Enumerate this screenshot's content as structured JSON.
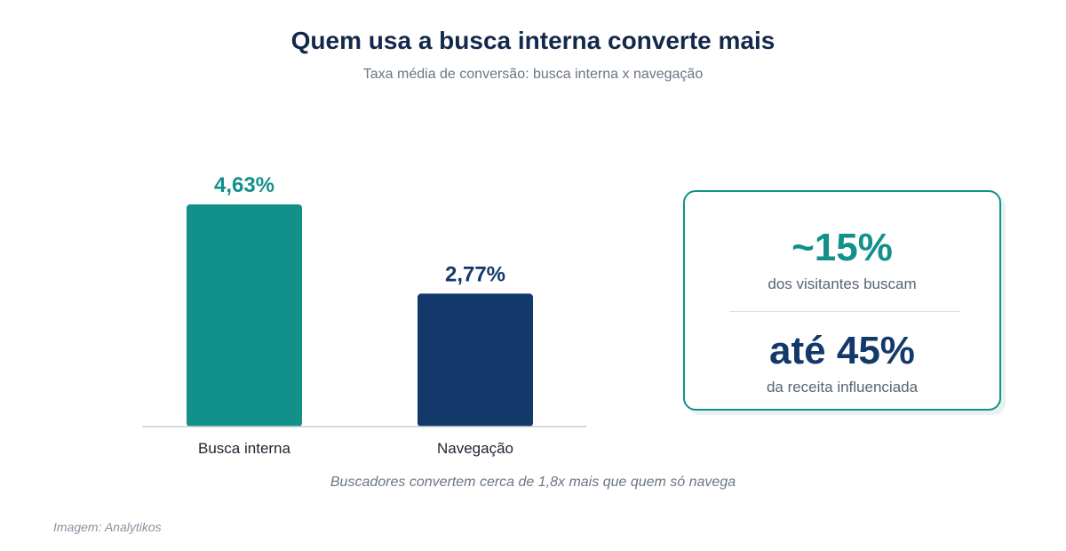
{
  "header": {
    "title": "Quem usa a busca interna converte mais",
    "subtitle": "Taxa média de conversão: busca interna x navegação"
  },
  "chart_data": {
    "type": "bar",
    "categories": [
      "Busca interna",
      "Navegação"
    ],
    "values": [
      4.63,
      2.77
    ],
    "data_labels": [
      "4,63%",
      "2,77%"
    ],
    "colors": [
      "#12908a",
      "#13396a"
    ],
    "ylim": [
      0,
      5
    ],
    "grid": false,
    "title": "Quem usa a busca interna converte mais",
    "subtitle": "Taxa média de conversão: busca interna x navegação",
    "xlabel": "",
    "ylabel": ""
  },
  "callout": {
    "stat1": {
      "value": "~15%",
      "label": "dos visitantes buscam"
    },
    "stat2": {
      "value": "até 45%",
      "label": "da receita influenciada"
    }
  },
  "caption": "Buscadores convertem cerca de 1,8x mais que quem só navega",
  "source": "Imagem: Analytikos",
  "colors": {
    "accent_teal": "#12908a",
    "accent_navy": "#13396a",
    "title": "#13284a"
  }
}
